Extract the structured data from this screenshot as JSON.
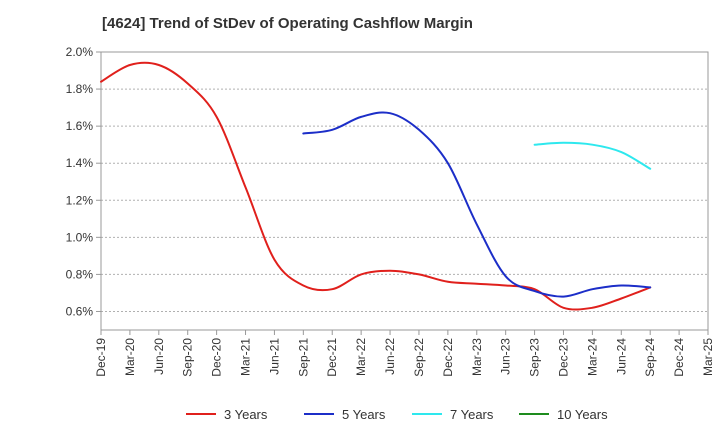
{
  "title": "[4624]  Trend of StDev of Operating Cashflow Margin",
  "chart_data": {
    "type": "line",
    "title": "[4624]  Trend of StDev of Operating Cashflow Margin",
    "xlabel": "",
    "ylabel": "",
    "y_tick_labels": [
      "0.6%",
      "0.8%",
      "1.0%",
      "1.2%",
      "1.4%",
      "1.6%",
      "1.8%",
      "2.0%"
    ],
    "y_ticks": [
      0.6,
      0.8,
      1.0,
      1.2,
      1.4,
      1.6,
      1.8,
      2.0
    ],
    "ylim": [
      0.5,
      2.0
    ],
    "x_tick_labels": [
      "Dec-19",
      "Mar-20",
      "Jun-20",
      "Sep-20",
      "Dec-20",
      "Mar-21",
      "Jun-21",
      "Sep-21",
      "Dec-21",
      "Mar-22",
      "Jun-22",
      "Sep-22",
      "Dec-22",
      "Mar-23",
      "Jun-23",
      "Sep-23",
      "Dec-23",
      "Mar-24",
      "Jun-24",
      "Sep-24",
      "Dec-24",
      "Mar-25"
    ],
    "legend_position": "bottom",
    "grid": "horizontal dashed",
    "series": [
      {
        "name": "3 Years",
        "color": "#e0201c",
        "values": [
          1.84,
          1.93,
          1.93,
          1.83,
          1.65,
          1.27,
          0.88,
          0.74,
          0.72,
          0.8,
          0.82,
          0.8,
          0.76,
          0.75,
          0.74,
          0.72,
          0.62,
          0.62,
          0.67,
          0.73,
          null,
          null
        ]
      },
      {
        "name": "5 Years",
        "color": "#1c2ec8",
        "values": [
          null,
          null,
          null,
          null,
          null,
          null,
          null,
          1.56,
          1.58,
          1.65,
          1.67,
          1.58,
          1.4,
          1.07,
          0.79,
          0.71,
          0.68,
          0.72,
          0.74,
          0.73,
          null,
          null
        ]
      },
      {
        "name": "7 Years",
        "color": "#2ee8ee",
        "values": [
          null,
          null,
          null,
          null,
          null,
          null,
          null,
          null,
          null,
          null,
          null,
          null,
          null,
          null,
          null,
          1.5,
          1.51,
          1.5,
          1.46,
          1.37,
          null,
          null
        ]
      },
      {
        "name": "10 Years",
        "color": "#1e8c1e",
        "values": [
          null,
          null,
          null,
          null,
          null,
          null,
          null,
          null,
          null,
          null,
          null,
          null,
          null,
          null,
          null,
          null,
          null,
          null,
          null,
          null,
          null,
          null
        ]
      }
    ]
  }
}
